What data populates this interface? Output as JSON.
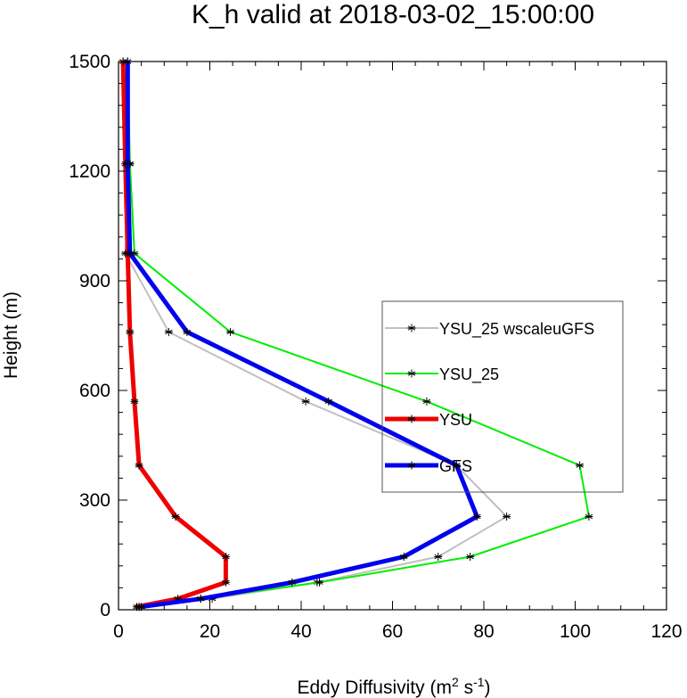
{
  "chart_data": {
    "type": "line",
    "title": "K_h valid at 2018-03-02_15:00:00",
    "xlabel": {
      "main": "Eddy Diffusivity (m",
      "sup1": "2",
      "mid": " s",
      "sup2": "-1",
      "end": ")"
    },
    "ylabel": "Height (m)",
    "xlim": [
      0,
      120
    ],
    "ylim": [
      0,
      1500
    ],
    "xticks": [
      0,
      20,
      40,
      60,
      80,
      100,
      120
    ],
    "yticks": [
      0,
      300,
      600,
      900,
      1200,
      1500
    ],
    "xtick_labels": [
      "0",
      "20",
      "40",
      "60",
      "80",
      "100",
      "120"
    ],
    "ytick_labels": [
      "0",
      "300",
      "600",
      "900",
      "1200",
      "1500"
    ],
    "grid": false,
    "legend_position": "right",
    "series": [
      {
        "name": "YSU_25 wscaleuGFS",
        "color": "#c0c0c0",
        "width": 2,
        "x": [
          4.5,
          20.5,
          43.5,
          70,
          85,
          74,
          41,
          11,
          1.5,
          2.5,
          1
        ],
        "y": [
          8,
          30,
          75,
          145,
          255,
          395,
          570,
          760,
          975,
          1220,
          1500
        ]
      },
      {
        "name": "YSU_25",
        "color": "#00ee00",
        "width": 2,
        "x": [
          4.5,
          18,
          44,
          77,
          103,
          101,
          67.5,
          24.5,
          3.5,
          2.5,
          2
        ],
        "y": [
          8,
          30,
          75,
          145,
          255,
          395,
          570,
          760,
          975,
          1220,
          1500
        ]
      },
      {
        "name": "YSU",
        "color": "#ee0000",
        "width": 5,
        "x": [
          4,
          13,
          23.5,
          23.5,
          12.5,
          4.5,
          3.5,
          2.5,
          2,
          1.5,
          1
        ],
        "y": [
          8,
          30,
          75,
          145,
          255,
          395,
          570,
          760,
          975,
          1220,
          1500
        ]
      },
      {
        "name": "GFS",
        "color": "#0000ee",
        "width": 5,
        "x": [
          5,
          18,
          38,
          62.5,
          78.5,
          74,
          46,
          15,
          2.5,
          2,
          2
        ],
        "y": [
          8,
          30,
          75,
          145,
          255,
          395,
          570,
          760,
          975,
          1220,
          1500
        ]
      }
    ],
    "legend_order": [
      "YSU_25 wscaleuGFS",
      "YSU_25",
      "YSU",
      "GFS"
    ]
  }
}
